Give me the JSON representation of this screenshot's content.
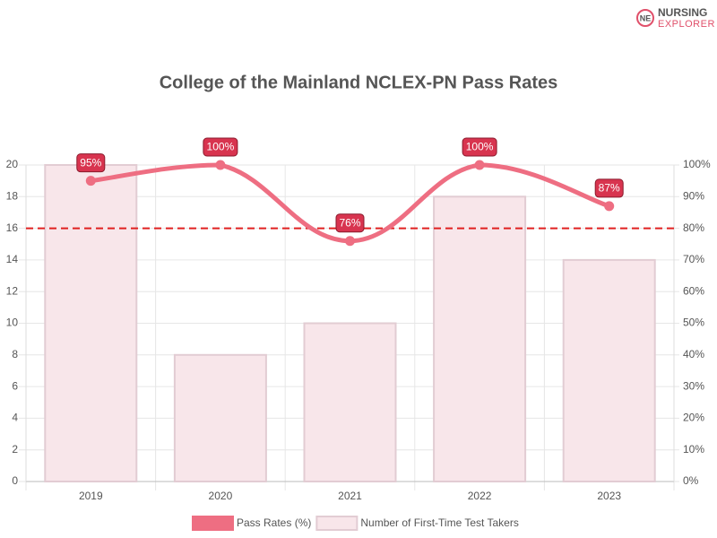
{
  "logo": [
    "NURSING",
    "EXPLORER"
  ],
  "chart_data": {
    "type": "bar-line",
    "title": "College of the Mainland NCLEX-PN Pass Rates",
    "categories": [
      "2019",
      "2020",
      "2021",
      "2022",
      "2023"
    ],
    "series": [
      {
        "name": "Pass Rates (%)",
        "type": "line",
        "axis": "y2",
        "color": "#ee6e82",
        "values": [
          95,
          100,
          76,
          100,
          87
        ],
        "value_labels": [
          "95%",
          "100%",
          "76%",
          "100%",
          "87%"
        ]
      },
      {
        "name": "Number of First-Time Test Takers",
        "type": "bar",
        "axis": "y",
        "color": "#f8e6ea",
        "values": [
          20,
          8,
          10,
          18,
          14
        ]
      }
    ],
    "ylim": [
      0,
      20
    ],
    "yticks": [
      0,
      2,
      4,
      6,
      8,
      10,
      12,
      14,
      16,
      18,
      20
    ],
    "y2lim": [
      0,
      100
    ],
    "y2ticks": [
      {
        "value": 0,
        "label": "0%"
      },
      {
        "value": 10,
        "label": "10%"
      },
      {
        "value": 20,
        "label": "20%"
      },
      {
        "value": 30,
        "label": "30%"
      },
      {
        "value": 40,
        "label": "40%"
      },
      {
        "value": 50,
        "label": "50%"
      },
      {
        "value": 60,
        "label": "60%"
      },
      {
        "value": 70,
        "label": "70%"
      },
      {
        "value": 80,
        "label": "80%"
      },
      {
        "value": 90,
        "label": "90%"
      },
      {
        "value": 100,
        "label": "100%"
      }
    ],
    "reference_line": {
      "value": 80,
      "axis": "y2",
      "color": "#e02020"
    },
    "grid": true,
    "legend": "bottom"
  }
}
